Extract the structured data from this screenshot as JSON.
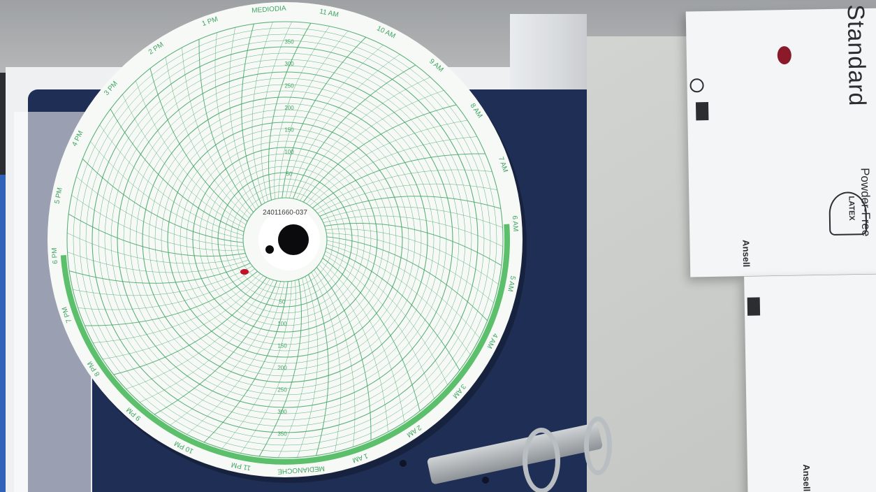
{
  "chart": {
    "serial": "24011660-037",
    "hours": [
      "6 AM",
      "5 AM",
      "4 AM",
      "3 AM",
      "2 AM",
      "1 AM",
      "MEDIANOCHE",
      "11 PM",
      "10 PM",
      "9 PM",
      "8 PM",
      "7 PM",
      "6 PM",
      "5 PM",
      "4 PM",
      "3 PM",
      "2 PM",
      "1 PM",
      "MEDIODIA",
      "11 AM",
      "10 AM",
      "9 AM",
      "8 AM",
      "7 AM"
    ],
    "scale_values": [
      "50",
      "100",
      "150",
      "200",
      "250",
      "300",
      "350"
    ]
  },
  "box_top": {
    "brand": "Standard",
    "feature": "Powder-Free",
    "material": "LATEX",
    "maker": "Ansell"
  },
  "box_bottom": {
    "maker": "Ansell"
  },
  "colors": {
    "grid": "#3fa463",
    "paper": "#f7f9f6",
    "night_band": "#5cbf6b"
  }
}
